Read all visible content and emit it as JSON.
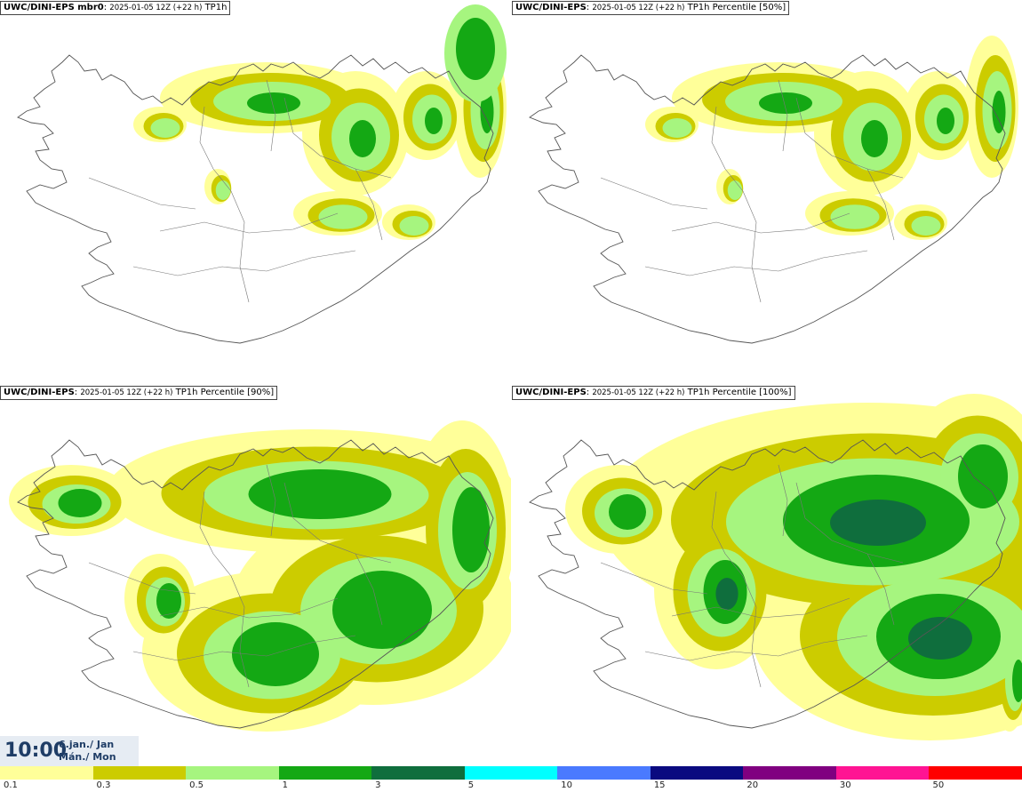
{
  "panels": [
    {
      "source": "UWC/DINI-EPS mbr0",
      "run": "2025-01-05 12Z (+22 h)",
      "field": "TP1h",
      "intensity": 1
    },
    {
      "source": "UWC/DINI-EPS",
      "run": "2025-01-05 12Z (+22 h)",
      "field": "TP1h Percentile [50%]",
      "intensity": 1
    },
    {
      "source": "UWC/DINI-EPS",
      "run": "2025-01-05 12Z (+22 h)",
      "field": "TP1h Percentile [90%]",
      "intensity": 2
    },
    {
      "source": "UWC/DINI-EPS",
      "run": "2025-01-05 12Z (+22 h)",
      "field": "TP1h Percentile [100%]",
      "intensity": 3
    }
  ],
  "valid_time": {
    "time": "10:00",
    "date_line1": "6.jan./ Jan",
    "date_line2": "Mán./ Mon"
  },
  "legend": {
    "colors": [
      "#ffff99",
      "#cccc00",
      "#a6f57f",
      "#14a814",
      "#0f6e3d",
      "#00ffff",
      "#4a7aff",
      "#0a0a80",
      "#800080",
      "#ff1493",
      "#ff0000"
    ],
    "labels": [
      "0.1",
      "0.3",
      "0.5",
      "1",
      "3",
      "5",
      "10",
      "15",
      "20",
      "30",
      "50"
    ]
  }
}
